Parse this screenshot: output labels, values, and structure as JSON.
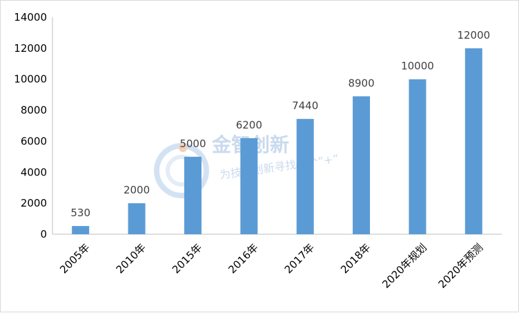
{
  "chart_data": {
    "type": "bar",
    "categories": [
      "2005年",
      "2010年",
      "2015年",
      "2016年",
      "2017年",
      "2018年",
      "2020年规划",
      "2020年预测"
    ],
    "values": [
      530,
      2000,
      5000,
      6200,
      7440,
      8900,
      10000,
      12000
    ],
    "data_labels": [
      "530",
      "2000",
      "5000",
      "6200",
      "7440",
      "8900",
      "10000",
      "12000"
    ],
    "y_ticks": [
      "0",
      "2000",
      "4000",
      "6000",
      "8000",
      "10000",
      "12000",
      "14000"
    ],
    "ylim": [
      0,
      14000
    ],
    "bar_color": "#5b9bd5",
    "grid": false,
    "legend": "none"
  },
  "watermark": {
    "title": "金智创新",
    "subtitle": "为技术创新寻找一个“+”",
    "icon": "swirl-logo-icon"
  }
}
